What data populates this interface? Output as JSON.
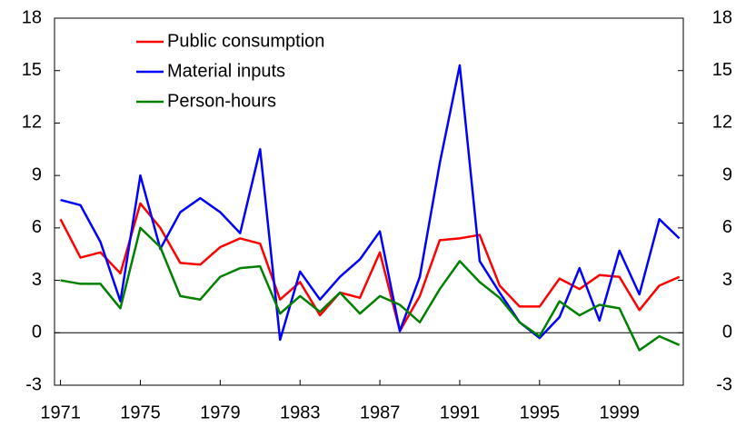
{
  "chart_data": {
    "type": "line",
    "x": [
      1971,
      1972,
      1973,
      1974,
      1975,
      1976,
      1977,
      1978,
      1979,
      1980,
      1981,
      1982,
      1983,
      1984,
      1985,
      1986,
      1987,
      1988,
      1989,
      1990,
      1991,
      1992,
      1993,
      1994,
      1995,
      1996,
      1997,
      1998,
      1999,
      2000,
      2001,
      2002
    ],
    "series": [
      {
        "name": "Public consumption",
        "color": "#ff0000",
        "values": [
          6.5,
          4.3,
          4.6,
          3.4,
          7.4,
          6.0,
          4.0,
          3.9,
          4.9,
          5.4,
          5.1,
          1.9,
          2.9,
          1.0,
          2.3,
          2.0,
          4.6,
          0.1,
          2.1,
          5.3,
          5.4,
          5.6,
          2.7,
          1.5,
          1.5,
          3.1,
          2.5,
          3.3,
          3.2,
          1.3,
          2.7,
          3.2
        ]
      },
      {
        "name": "Material inputs",
        "color": "#0000ff",
        "values": [
          7.6,
          7.3,
          5.2,
          1.8,
          9.0,
          4.8,
          6.9,
          7.7,
          6.9,
          5.7,
          10.5,
          -0.4,
          3.5,
          1.9,
          3.2,
          4.2,
          5.8,
          0.1,
          3.2,
          9.7,
          15.3,
          4.1,
          2.3,
          0.6,
          -0.3,
          0.9,
          3.7,
          0.7,
          4.7,
          2.2,
          6.5,
          5.4
        ]
      },
      {
        "name": "Person-hours",
        "color": "#008000",
        "values": [
          3.0,
          2.8,
          2.8,
          1.4,
          6.0,
          4.9,
          2.1,
          1.9,
          3.2,
          3.7,
          3.8,
          1.1,
          2.1,
          1.2,
          2.3,
          1.1,
          2.1,
          1.6,
          0.6,
          2.5,
          4.1,
          2.9,
          2.0,
          0.6,
          -0.2,
          1.8,
          1.0,
          1.6,
          1.4,
          -1.0,
          -0.2,
          -0.7
        ]
      }
    ],
    "xlim": [
      1970.7,
      2002.2
    ],
    "xticks": [
      1971,
      1975,
      1979,
      1983,
      1987,
      1991,
      1995,
      1999
    ],
    "ylim": [
      -3,
      18
    ],
    "yticks": [
      -3,
      0,
      3,
      6,
      9,
      12,
      15,
      18
    ],
    "y2lim": [
      -3,
      18
    ],
    "y2ticks": [
      -3,
      0,
      3,
      6,
      9,
      12,
      15,
      18
    ],
    "legend": "upper left"
  }
}
